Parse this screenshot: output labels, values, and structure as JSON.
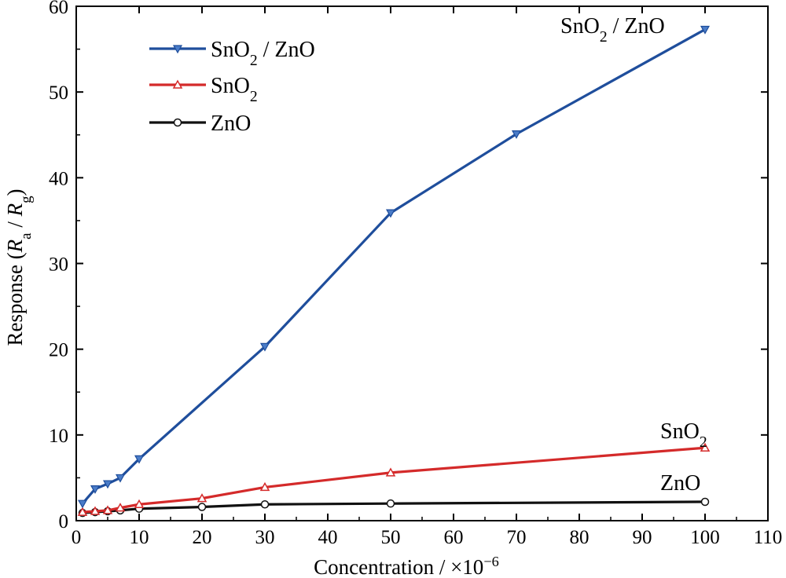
{
  "chart_data": {
    "type": "line",
    "xlabel": "Concentration / ×10⁻⁶",
    "ylabel": "Response (Ra / Rg)",
    "xlim": [
      0,
      110
    ],
    "ylim": [
      0,
      60
    ],
    "x_ticks": [
      0,
      10,
      20,
      30,
      40,
      50,
      60,
      70,
      80,
      90,
      100,
      110
    ],
    "y_ticks": [
      0,
      10,
      20,
      30,
      40,
      50,
      60
    ],
    "grid": false,
    "legend_position": "top-left",
    "series": [
      {
        "name": "SnO2 / ZnO",
        "color": "#1f4e9c",
        "marker": "triangle-down",
        "x": [
          1,
          3,
          5,
          7,
          10,
          30,
          50,
          70,
          100
        ],
        "y": [
          2.0,
          3.7,
          4.3,
          5.0,
          7.2,
          20.3,
          35.9,
          45.1,
          57.3
        ]
      },
      {
        "name": "SnO2",
        "color": "#d42a2a",
        "marker": "triangle-up",
        "x": [
          1,
          3,
          5,
          7,
          10,
          20,
          30,
          50,
          100
        ],
        "y": [
          1.0,
          1.1,
          1.2,
          1.5,
          1.9,
          2.6,
          3.9,
          5.6,
          8.5
        ]
      },
      {
        "name": "ZnO",
        "color": "#111111",
        "marker": "circle",
        "x": [
          1,
          3,
          5,
          7,
          10,
          20,
          30,
          50,
          100
        ],
        "y": [
          0.9,
          1.0,
          1.1,
          1.2,
          1.4,
          1.6,
          1.9,
          2.0,
          2.2
        ]
      }
    ],
    "end_labels": [
      "SnO2 / ZnO",
      "SnO2",
      "ZnO"
    ]
  }
}
